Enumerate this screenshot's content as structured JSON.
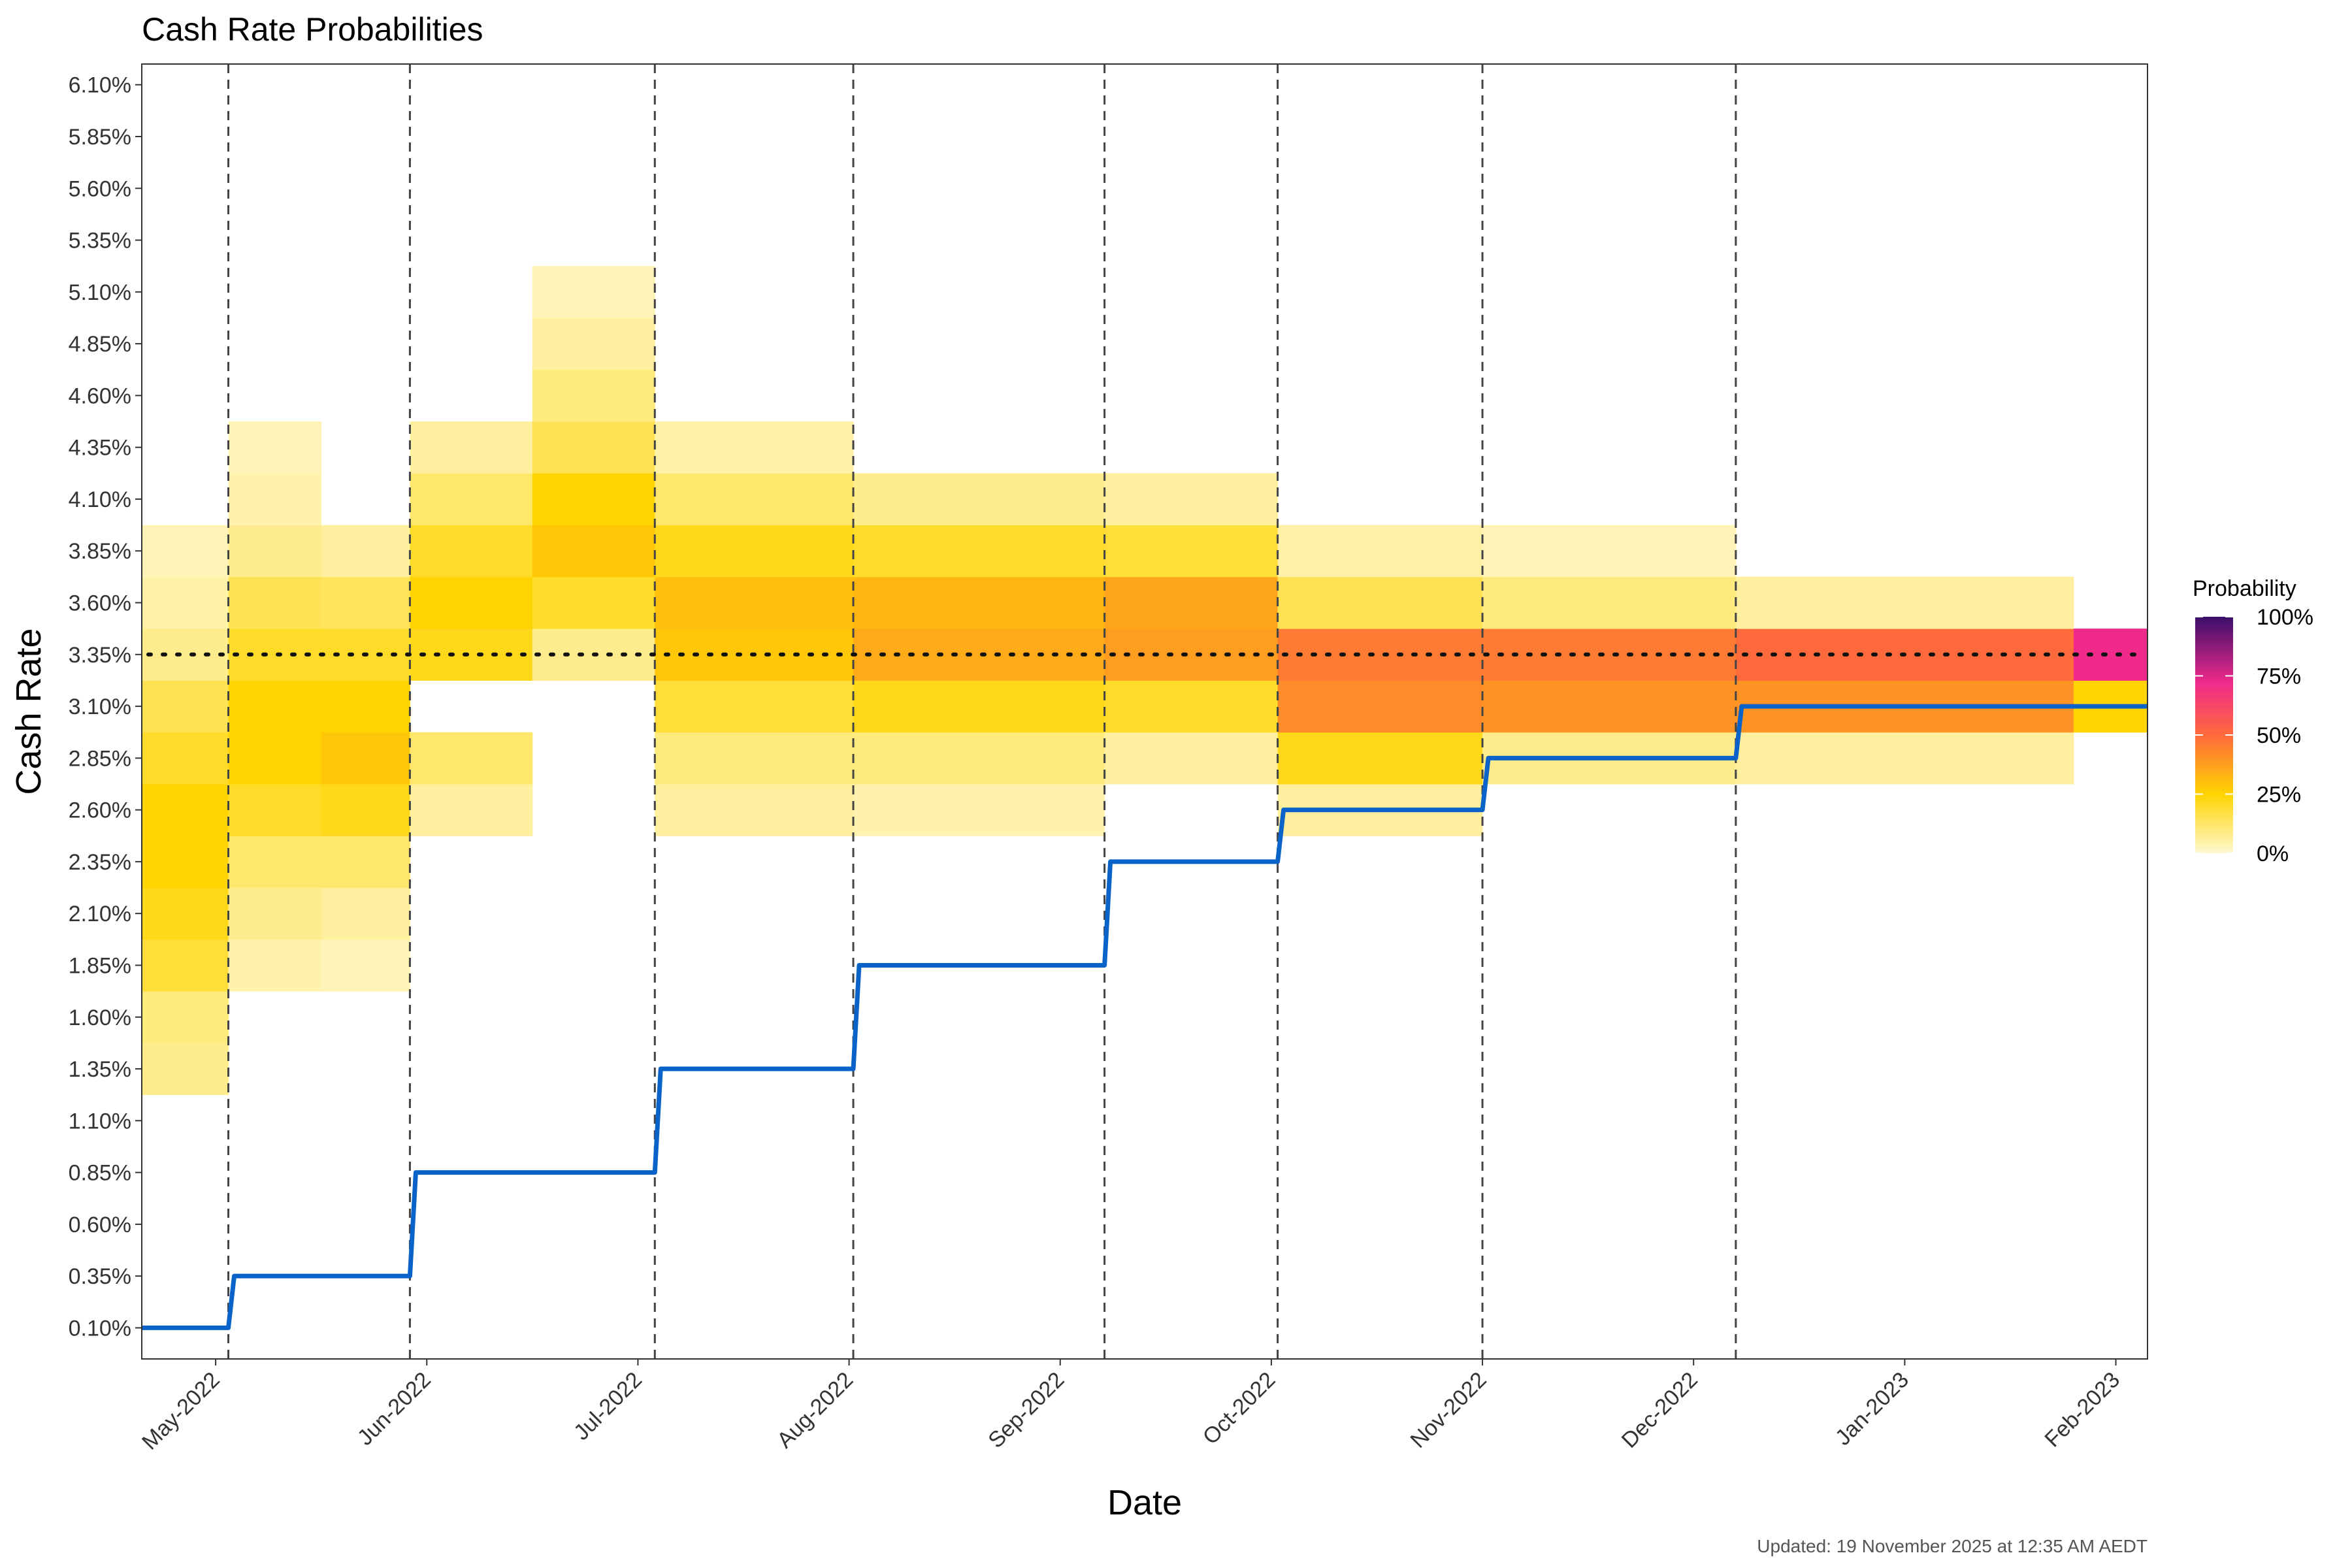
{
  "chart_data": {
    "type": "heatmap",
    "title": "Cash Rate Probabilities",
    "xlabel": "Date",
    "ylabel": "Cash Rate",
    "footer": "Updated: 19 November 2025 at 12:35 AM AEDT",
    "legend": {
      "title": "Probability",
      "labels": [
        "100%",
        "75%",
        "50%",
        "25%",
        "0%"
      ],
      "position": "right"
    },
    "y_ticks": [
      "0.10%",
      "0.35%",
      "0.60%",
      "0.85%",
      "1.10%",
      "1.35%",
      "1.60%",
      "1.85%",
      "2.10%",
      "2.35%",
      "2.60%",
      "2.85%",
      "3.10%",
      "3.35%",
      "3.60%",
      "3.85%",
      "4.10%",
      "4.35%",
      "4.60%",
      "4.85%",
      "5.10%",
      "5.35%",
      "5.60%",
      "5.85%",
      "6.10%"
    ],
    "x_ticks": [
      {
        "label": "May-2022",
        "month": 0
      },
      {
        "label": "Jun-2022",
        "month": 1
      },
      {
        "label": "Jul-2022",
        "month": 2
      },
      {
        "label": "Aug-2022",
        "month": 3
      },
      {
        "label": "Sep-2022",
        "month": 4
      },
      {
        "label": "Oct-2022",
        "month": 5
      },
      {
        "label": "Nov-2022",
        "month": 6
      },
      {
        "label": "Dec-2022",
        "month": 7
      },
      {
        "label": "Jan-2023",
        "month": 8
      },
      {
        "label": "Feb-2023",
        "month": 9
      }
    ],
    "x_range_months": [
      -0.35,
      9.15
    ],
    "y_range_pct": [
      -0.05,
      6.2
    ],
    "meeting_dates_months": [
      0.06,
      0.92,
      2.08,
      3.02,
      4.21,
      5.03,
      6.0,
      7.2
    ],
    "reference_rate_pct": 3.35,
    "actual_cash_rate": {
      "name": "Cash rate",
      "steps": [
        {
          "month": -0.35,
          "rate": 0.1
        },
        {
          "month": 0.06,
          "rate": 0.35
        },
        {
          "month": 0.92,
          "rate": 0.85
        },
        {
          "month": 2.08,
          "rate": 1.35
        },
        {
          "month": 3.02,
          "rate": 1.85
        },
        {
          "month": 4.21,
          "rate": 2.35
        },
        {
          "month": 5.03,
          "rate": 2.6
        },
        {
          "month": 6.0,
          "rate": 2.85
        },
        {
          "month": 7.2,
          "rate": 3.1
        },
        {
          "month": 9.15,
          "rate": 3.1
        }
      ]
    },
    "probability_columns": [
      {
        "start": -0.35,
        "end": 0.06,
        "probs": {
          "1.35": 8,
          "1.60": 10,
          "1.85": 18,
          "2.10": 22,
          "2.35": 25,
          "2.60": 25,
          "2.85": 20,
          "3.10": 15,
          "3.35": 8,
          "3.60": 5,
          "3.85": 3
        }
      },
      {
        "start": 0.06,
        "end": 0.5,
        "probs": {
          "1.85": 4,
          "2.10": 8,
          "2.35": 12,
          "2.60": 20,
          "2.85": 25,
          "3.10": 25,
          "3.35": 20,
          "3.60": 15,
          "3.85": 8,
          "4.10": 4,
          "4.35": 3
        }
      },
      {
        "start": 0.5,
        "end": 0.92,
        "probs": {
          "1.85": 3,
          "2.10": 6,
          "2.35": 12,
          "2.60": 22,
          "2.85": 28,
          "3.10": 25,
          "3.35": 20,
          "3.60": 14,
          "3.85": 6
        }
      },
      {
        "start": 0.92,
        "end": 1.5,
        "probs": {
          "2.60": 6,
          "2.85": 12,
          "3.35": 22,
          "3.60": 25,
          "3.85": 20,
          "4.10": 12,
          "4.35": 6
        }
      },
      {
        "start": 1.5,
        "end": 2.08,
        "probs": {
          "3.35": 8,
          "3.60": 20,
          "3.85": 28,
          "4.10": 25,
          "4.35": 15,
          "4.60": 10,
          "4.85": 6,
          "5.10": 3
        }
      },
      {
        "start": 2.08,
        "end": 3.02,
        "probs": {
          "2.60": 6,
          "2.85": 10,
          "3.10": 18,
          "3.35": 28,
          "3.60": 30,
          "3.85": 22,
          "4.10": 12,
          "4.35": 5
        }
      },
      {
        "start": 3.02,
        "end": 4.21,
        "probs": {
          "2.60": 4,
          "2.85": 10,
          "3.10": 22,
          "3.35": 35,
          "3.60": 32,
          "3.85": 20,
          "4.10": 8
        }
      },
      {
        "start": 4.21,
        "end": 5.03,
        "probs": {
          "2.85": 6,
          "3.10": 20,
          "3.35": 38,
          "3.60": 36,
          "3.85": 18,
          "4.10": 6
        }
      },
      {
        "start": 5.03,
        "end": 6.0,
        "probs": {
          "2.60": 6,
          "2.85": 22,
          "3.10": 42,
          "3.35": 46,
          "3.60": 15,
          "3.85": 5
        }
      },
      {
        "start": 6.0,
        "end": 7.2,
        "probs": {
          "2.85": 8,
          "3.10": 40,
          "3.35": 46,
          "3.60": 10,
          "3.85": 3
        }
      },
      {
        "start": 7.2,
        "end": 8.8,
        "probs": {
          "2.85": 6,
          "3.10": 40,
          "3.35": 50,
          "3.60": 6
        }
      },
      {
        "start": 8.8,
        "end": 9.15,
        "probs": {
          "3.10": 25,
          "3.35": 72
        }
      }
    ]
  }
}
